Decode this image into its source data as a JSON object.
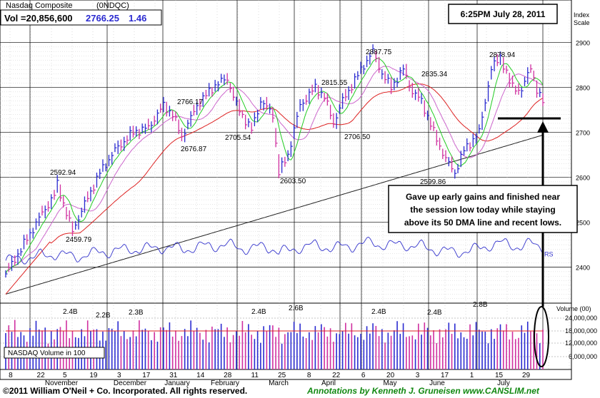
{
  "header": {
    "name": "Nasdaq Composite",
    "symbol": "(0NDQC)",
    "vol_label": "Vol =20,856,600",
    "price": "2766.25",
    "change": "1.46",
    "timestamp": "6:25PM July 28, 2011",
    "index_scale_line1": "Index",
    "index_scale_line2": "Scale"
  },
  "annotation": {
    "lines": [
      "Gave up early gains and finished near",
      "the session low today while staying",
      "above its 50 DMA line and recent lows."
    ]
  },
  "volume_panel": {
    "label": "NASDAQ Volume in 100",
    "axis_title": "Volume (00)",
    "ticks": [
      "24,000,000",
      "18,000,000",
      "12,000,000",
      "6,000,000"
    ]
  },
  "footer": {
    "copyright": "©2011 William O'Neil + Co. Incorporated. All rights reserved.",
    "annotations": "Annotations by Kenneth J. Gruneisen  www.CANSLIM.net"
  },
  "colors": {
    "up": "#2a2ad0",
    "down": "#d030a0",
    "ma10": "#22cc22",
    "ma21": "#cc66cc",
    "ma50": "#dd2222",
    "ma200": "#222222",
    "rs": "#3333cc",
    "vol_avg": "#dd2222",
    "annotation_border": "#000000"
  },
  "chart_data": {
    "type": "ohlc",
    "y_axis": {
      "ticks": [
        2400,
        2500,
        2600,
        2700,
        2800,
        2900
      ],
      "range": [
        2320,
        2985
      ]
    },
    "x_axis": {
      "tick_labels": [
        "8",
        "22",
        "5",
        "19",
        "3",
        "17",
        "31",
        "14",
        "28",
        "11",
        "25",
        "8",
        "22",
        "6",
        "20",
        "3",
        "17",
        "1",
        "15",
        "29"
      ],
      "month_labels": [
        "November",
        "December",
        "January",
        "February",
        "March",
        "April",
        "May",
        "June",
        "July"
      ]
    },
    "price_labels": [
      {
        "text": "2592.94",
        "value": 2592.94
      },
      {
        "text": "2459.79",
        "value": 2459.79
      },
      {
        "text": "2766.17",
        "value": 2766.17
      },
      {
        "text": "2676.87",
        "value": 2676.87
      },
      {
        "text": "2705.54",
        "value": 2705.54
      },
      {
        "text": "2603.50",
        "value": 2603.5
      },
      {
        "text": "2815.55",
        "value": 2815.55
      },
      {
        "text": "2706.50",
        "value": 2706.5
      },
      {
        "text": "2887.75",
        "value": 2887.75
      },
      {
        "text": "2835.34",
        "value": 2835.34
      },
      {
        "text": "2599.86",
        "value": 2599.86
      },
      {
        "text": "2878.94",
        "value": 2878.94
      }
    ],
    "rs_label": "RS",
    "volume_labels": [
      "2.4B",
      "2.2B",
      "2.3B",
      "2.4B",
      "2.6B",
      "2.4B",
      "2.4B",
      "2.8B"
    ],
    "close_keypoints": [
      [
        0,
        2385
      ],
      [
        10,
        2440
      ],
      [
        24,
        2520
      ],
      [
        32,
        2560
      ],
      [
        34,
        2585
      ],
      [
        40,
        2520
      ],
      [
        44,
        2480
      ],
      [
        52,
        2540
      ],
      [
        62,
        2610
      ],
      [
        72,
        2660
      ],
      [
        84,
        2700
      ],
      [
        94,
        2710
      ],
      [
        104,
        2760
      ],
      [
        110,
        2740
      ],
      [
        116,
        2690
      ],
      [
        126,
        2760
      ],
      [
        138,
        2805
      ],
      [
        146,
        2820
      ],
      [
        152,
        2760
      ],
      [
        162,
        2705
      ],
      [
        168,
        2770
      ],
      [
        176,
        2740
      ],
      [
        180,
        2610
      ],
      [
        186,
        2650
      ],
      [
        194,
        2760
      ],
      [
        204,
        2800
      ],
      [
        210,
        2780
      ],
      [
        216,
        2720
      ],
      [
        222,
        2770
      ],
      [
        236,
        2850
      ],
      [
        242,
        2880
      ],
      [
        248,
        2830
      ],
      [
        254,
        2800
      ],
      [
        262,
        2840
      ],
      [
        268,
        2790
      ],
      [
        274,
        2770
      ],
      [
        282,
        2700
      ],
      [
        290,
        2640
      ],
      [
        296,
        2610
      ],
      [
        302,
        2660
      ],
      [
        312,
        2700
      ],
      [
        320,
        2840
      ],
      [
        326,
        2870
      ],
      [
        332,
        2810
      ],
      [
        340,
        2790
      ],
      [
        346,
        2850
      ],
      [
        350,
        2790
      ],
      [
        354,
        2766
      ]
    ],
    "annotated_close": 2766.25,
    "annotated_change": 1.46
  }
}
